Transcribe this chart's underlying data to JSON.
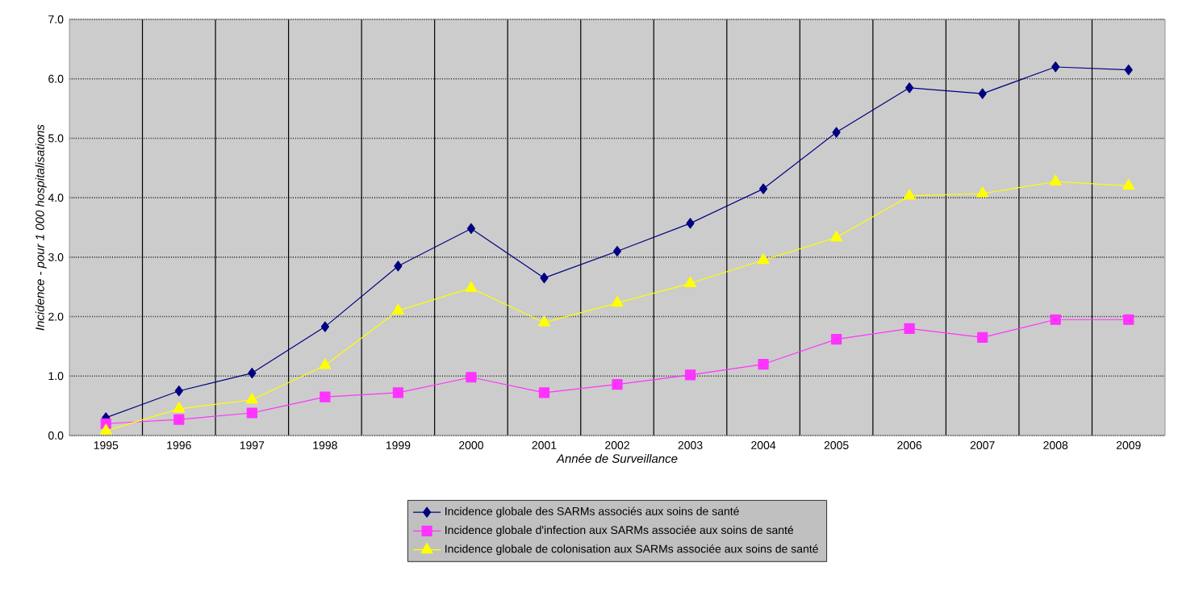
{
  "chart_data": {
    "type": "line",
    "xlabel": "Année de Surveillance",
    "ylabel": "Incidence - pour 1 000 hospitalisations",
    "categories": [
      "1995",
      "1996",
      "1997",
      "1998",
      "1999",
      "2000",
      "2001",
      "2002",
      "2003",
      "2004",
      "2005",
      "2006",
      "2007",
      "2008",
      "2009"
    ],
    "ylim": [
      0,
      7
    ],
    "yticks": [
      {
        "value": 0,
        "label": "0.0"
      },
      {
        "value": 1,
        "label": "1.0"
      },
      {
        "value": 2,
        "label": "2.0"
      },
      {
        "value": 3,
        "label": "3.0"
      },
      {
        "value": 4,
        "label": "4.0"
      },
      {
        "value": 5,
        "label": "5.0"
      },
      {
        "value": 6,
        "label": "6.0"
      },
      {
        "value": 7,
        "label": "7.0"
      }
    ],
    "grid": true,
    "legend": "bottom",
    "series": [
      {
        "name": "Incidence globale des SARMs associés aux soins de santé",
        "color": "#000080",
        "marker": "diamond",
        "values": [
          0.3,
          0.75,
          1.05,
          1.83,
          2.85,
          3.48,
          2.65,
          3.1,
          3.57,
          4.15,
          5.1,
          5.85,
          5.75,
          6.2,
          6.15
        ]
      },
      {
        "name": "Incidence globale d'infection aux SARMs associée aux soins de santé",
        "color": "#ff33ff",
        "marker": "square",
        "values": [
          0.2,
          0.27,
          0.38,
          0.65,
          0.72,
          0.98,
          0.72,
          0.86,
          1.02,
          1.2,
          1.62,
          1.8,
          1.65,
          1.95,
          1.95
        ]
      },
      {
        "name": "Incidence globale de colonisation aux SARMs associée aux soins de santé",
        "color": "#ffff00",
        "marker": "triangle",
        "values": [
          0.08,
          0.45,
          0.6,
          1.18,
          2.1,
          2.48,
          1.9,
          2.23,
          2.56,
          2.95,
          3.33,
          4.03,
          4.07,
          4.27,
          4.2
        ]
      }
    ]
  }
}
